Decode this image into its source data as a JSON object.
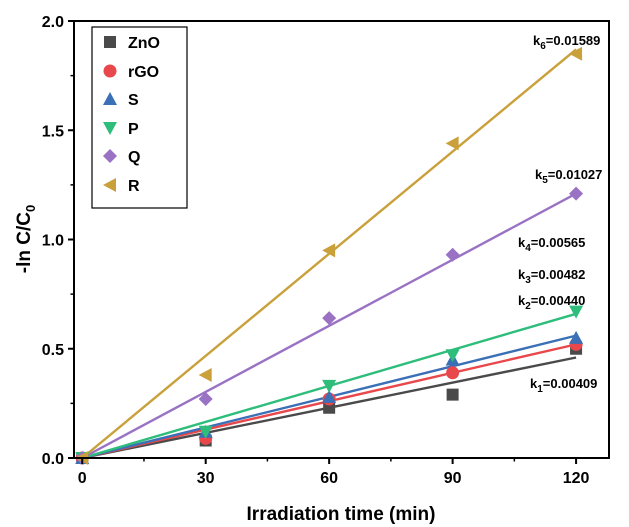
{
  "chart_data": {
    "type": "scatter",
    "xlabel": "Irradiation time (min)",
    "ylabel": "-ln C/C",
    "ylabel_subscript": "0",
    "xlim": [
      -2,
      128
    ],
    "ylim": [
      0,
      2.0
    ],
    "xticks": [
      "0",
      "30",
      "60",
      "90",
      "120"
    ],
    "yticks": [
      "0.0",
      "0.5",
      "1.0",
      "1.5",
      "2.0"
    ],
    "legend_position": "top-left",
    "x": [
      0,
      30,
      60,
      90,
      120
    ],
    "series": [
      {
        "name": "ZnO",
        "marker": "square",
        "color": "#4a4a4a",
        "values": [
          0.0,
          0.08,
          0.23,
          0.29,
          0.5
        ],
        "fit": [
          0.0,
          0.46
        ],
        "k_prefix": "k",
        "k_sub": "1",
        "k_value": "=0.00409"
      },
      {
        "name": "rGO",
        "marker": "circle",
        "color": "#e8474b",
        "values": [
          0.0,
          0.09,
          0.27,
          0.39,
          0.52
        ],
        "fit": [
          0.0,
          0.52
        ],
        "k_prefix": "k",
        "k_sub": "2",
        "k_value": "=0.00440"
      },
      {
        "name": "S",
        "marker": "triangle-up",
        "color": "#3b6fb6",
        "values": [
          0.0,
          0.12,
          0.28,
          0.45,
          0.55
        ],
        "fit": [
          0.0,
          0.56
        ],
        "k_prefix": "k",
        "k_sub": "3",
        "k_value": "=0.00482"
      },
      {
        "name": "P",
        "marker": "triangle-down",
        "color": "#2ebd7b",
        "values": [
          0.0,
          0.12,
          0.33,
          0.47,
          0.67
        ],
        "fit": [
          0.0,
          0.66
        ],
        "k_prefix": "k",
        "k_sub": "4",
        "k_value": "=0.00565"
      },
      {
        "name": "Q",
        "marker": "diamond",
        "color": "#9a72c4",
        "values": [
          0.0,
          0.27,
          0.64,
          0.93,
          1.21
        ],
        "fit": [
          0.0,
          1.21
        ],
        "k_prefix": "k",
        "k_sub": "5",
        "k_value": "=0.01027"
      },
      {
        "name": "R",
        "marker": "triangle-left",
        "color": "#c9a03a",
        "values": [
          0.0,
          0.38,
          0.95,
          1.44,
          1.85
        ],
        "fit": [
          0.0,
          1.87
        ],
        "k_prefix": "k",
        "k_sub": "6",
        "k_value": "=0.01589"
      }
    ]
  }
}
